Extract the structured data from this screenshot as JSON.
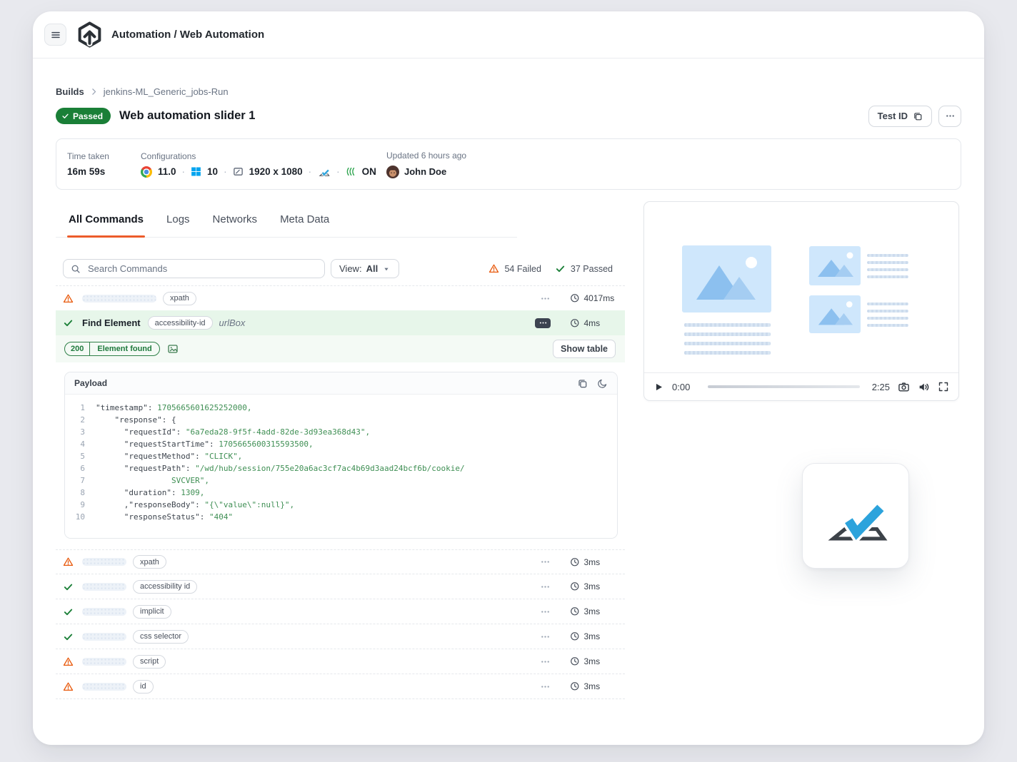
{
  "colors": {
    "accent_orange": "#ec5b2a",
    "success_green": "#1a7f37",
    "warning_orange": "#e8590c",
    "brand_blue": "#2ca3dc"
  },
  "header": {
    "app_title": "Automation / Web Automation"
  },
  "breadcrumb": {
    "root": "Builds",
    "current": "jenkins-ML_Generic_jobs-Run"
  },
  "build": {
    "status": "Passed",
    "title": "Web automation slider 1",
    "test_id_label": "Test ID"
  },
  "info": {
    "time_taken_label": "Time taken",
    "time_taken": "16m 59s",
    "configurations_label": "Configurations",
    "browser_version": "11.0",
    "os_version": "10",
    "resolution": "1920 x 1080",
    "network_label": "ON",
    "updated": "Updated 6 hours ago",
    "user_name": "John Doe"
  },
  "tabs": [
    {
      "label": "All Commands",
      "active": true
    },
    {
      "label": "Logs",
      "active": false
    },
    {
      "label": "Networks",
      "active": false
    },
    {
      "label": "Meta Data",
      "active": false
    }
  ],
  "toolbar": {
    "search_placeholder": "Search Commands",
    "view_prefix": "View:",
    "view_value": "All",
    "failed": "54 Failed",
    "passed": "37 Passed"
  },
  "commands": {
    "top_row": {
      "status": "failed",
      "badge": "xpath",
      "duration": "4017ms"
    },
    "selected": {
      "status": "passed",
      "name": "Find Element",
      "badge": "accessibility-id",
      "locator": "urlBox",
      "duration": "4ms"
    },
    "result": {
      "code": "200",
      "message": "Element found",
      "show_table_label": "Show table"
    },
    "rows": [
      {
        "status": "failed",
        "badge": "xpath",
        "duration": "3ms"
      },
      {
        "status": "passed",
        "badge": "accessibility id",
        "duration": "3ms"
      },
      {
        "status": "passed",
        "badge": "implicit",
        "duration": "3ms"
      },
      {
        "status": "passed",
        "badge": "css selector",
        "duration": "3ms"
      },
      {
        "status": "failed",
        "badge": "script",
        "duration": "3ms"
      },
      {
        "status": "failed",
        "badge": "id",
        "duration": "3ms"
      }
    ]
  },
  "payload": {
    "title": "Payload",
    "lines": [
      {
        "n": "1",
        "parts": [
          {
            "c": "k",
            "t": "\"timestamp\": "
          },
          {
            "c": "v",
            "t": "1705665601625252000,"
          }
        ]
      },
      {
        "n": "2",
        "parts": [
          {
            "c": "k",
            "t": "    \"response\": {"
          }
        ]
      },
      {
        "n": "3",
        "parts": [
          {
            "c": "k",
            "t": "      \"requestId\": "
          },
          {
            "c": "v",
            "t": "\"6a7eda28-9f5f-4add-82de-3d93ea368d43\","
          }
        ]
      },
      {
        "n": "4",
        "parts": [
          {
            "c": "k",
            "t": "      \"requestStartTime\": "
          },
          {
            "c": "v",
            "t": "1705665600315593500,"
          }
        ]
      },
      {
        "n": "5",
        "parts": [
          {
            "c": "k",
            "t": "      \"requestMethod\": "
          },
          {
            "c": "v",
            "t": "\"CLICK\","
          }
        ]
      },
      {
        "n": "6",
        "parts": [
          {
            "c": "k",
            "t": "      \"requestPath\": "
          },
          {
            "c": "v",
            "t": "\"/wd/hub/session/755e20a6ac3cf7ac4b69d3aad24bcf6b/cookie/"
          }
        ]
      },
      {
        "n": "7",
        "parts": [
          {
            "c": "v",
            "t": "                SVCVER\","
          }
        ]
      },
      {
        "n": "8",
        "parts": [
          {
            "c": "k",
            "t": "      \"duration\": "
          },
          {
            "c": "v",
            "t": "1309,"
          }
        ]
      },
      {
        "n": "9",
        "parts": [
          {
            "c": "k",
            "t": "      ,\"responseBody\": "
          },
          {
            "c": "v",
            "t": "\"{\\\"value\\\":null}\","
          }
        ]
      },
      {
        "n": "10",
        "parts": [
          {
            "c": "k",
            "t": "      \"responseStatus\": "
          },
          {
            "c": "v",
            "t": "\"404\""
          }
        ]
      }
    ]
  },
  "player": {
    "current_time": "0:00",
    "total_time": "2:25"
  }
}
